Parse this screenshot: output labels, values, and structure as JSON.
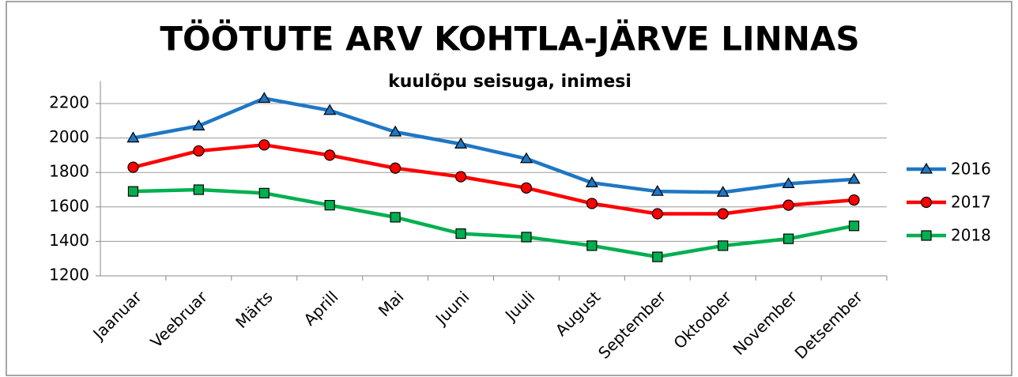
{
  "chart_data": {
    "type": "line",
    "title": "TÖÖTUTE ARV KOHTLA-JÄRVE LINNAS",
    "subtitle": "kuulõpu seisuga, inimesi",
    "categories": [
      "Jaanuar",
      "Veebruar",
      "Märts",
      "Aprill",
      "Mai",
      "Juuni",
      "Juuli",
      "August",
      "September",
      "Oktoober",
      "November",
      "Detsember"
    ],
    "series": [
      {
        "name": "2016",
        "color": "#1f77c4",
        "marker": "triangle",
        "values": [
          2000,
          2070,
          2230,
          2160,
          2035,
          1965,
          1880,
          1740,
          1690,
          1685,
          1735,
          1760
        ]
      },
      {
        "name": "2017",
        "color": "#ff0000",
        "marker": "circle",
        "values": [
          1830,
          1925,
          1960,
          1900,
          1825,
          1775,
          1710,
          1620,
          1560,
          1560,
          1610,
          1640
        ]
      },
      {
        "name": "2018",
        "color": "#00b050",
        "marker": "square",
        "values": [
          1690,
          1700,
          1680,
          1610,
          1540,
          1445,
          1425,
          1375,
          1310,
          1375,
          1415,
          1490
        ]
      }
    ],
    "ylim": [
      1200,
      2330
    ],
    "yticks": [
      1200,
      1400,
      1600,
      1800,
      2000,
      2200
    ],
    "grid": true,
    "legend": "right"
  }
}
